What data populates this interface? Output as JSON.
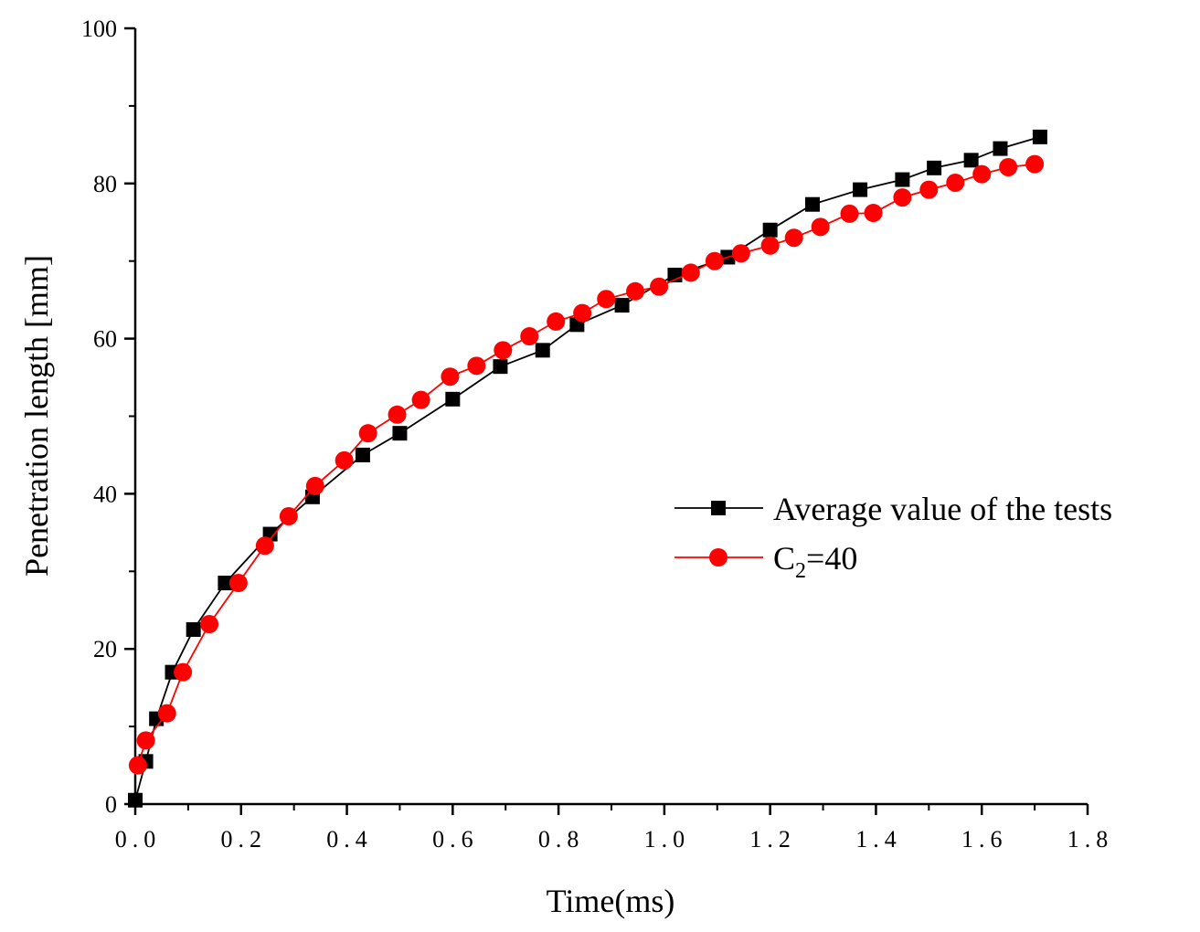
{
  "chart_data": {
    "type": "line",
    "title": "",
    "xlabel": "Time(ms)",
    "ylabel": "Penetration length [mm]",
    "xlim": [
      0,
      1.8
    ],
    "ylim": [
      0,
      100
    ],
    "xticks": [
      0.0,
      0.2,
      0.4,
      0.6,
      0.8,
      1.0,
      1.2,
      1.4,
      1.6,
      1.8
    ],
    "xtick_labels": [
      "0.0",
      "0.2",
      "0.4",
      "0.6",
      "0.8",
      "1.0",
      "1.2",
      "1.4",
      "1.6",
      "1.8"
    ],
    "yticks": [
      0,
      20,
      40,
      60,
      80,
      100
    ],
    "ytick_labels": [
      "0",
      "20",
      "40",
      "60",
      "80",
      "100"
    ],
    "legend_position": "center-right",
    "series": [
      {
        "name": "Average value of the tests",
        "color": "#000000",
        "marker": "square",
        "x": [
          0.0,
          0.02,
          0.04,
          0.07,
          0.11,
          0.17,
          0.255,
          0.335,
          0.43,
          0.5,
          0.6,
          0.69,
          0.77,
          0.835,
          0.92,
          1.02,
          1.12,
          1.2,
          1.28,
          1.37,
          1.45,
          1.51,
          1.58,
          1.635,
          1.71
        ],
        "y": [
          0.5,
          5.5,
          11,
          17,
          22.5,
          28.5,
          34.8,
          39.6,
          45,
          47.8,
          52.2,
          56.4,
          58.5,
          61.8,
          64.3,
          68.2,
          70.5,
          74,
          77.3,
          79.2,
          80.5,
          82,
          83,
          84.5,
          86
        ]
      },
      {
        "name": "C2=40",
        "color": "#ff0000",
        "marker": "circle",
        "x": [
          0.005,
          0.02,
          0.06,
          0.09,
          0.14,
          0.195,
          0.245,
          0.29,
          0.34,
          0.395,
          0.44,
          0.495,
          0.54,
          0.595,
          0.645,
          0.695,
          0.745,
          0.795,
          0.845,
          0.89,
          0.945,
          0.99,
          1.05,
          1.095,
          1.145,
          1.2,
          1.245,
          1.295,
          1.35,
          1.395,
          1.45,
          1.5,
          1.55,
          1.6,
          1.65,
          1.7
        ],
        "y": [
          5,
          8.2,
          11.7,
          17,
          23.2,
          28.5,
          33.3,
          37.1,
          41,
          44.3,
          47.8,
          50.2,
          52.1,
          55.1,
          56.5,
          58.5,
          60.3,
          62.2,
          63.3,
          65.1,
          66.1,
          66.7,
          68.5,
          70,
          71,
          72,
          73,
          74.4,
          76.1,
          76.2,
          78.2,
          79.2,
          80.1,
          81.2,
          82.1,
          82.5
        ]
      }
    ],
    "legend": {
      "entries": [
        {
          "label": "Average value of the tests",
          "series": 0
        },
        {
          "label_main": "C",
          "label_sub": "2",
          "label_rest": "=40",
          "series": 1
        }
      ]
    }
  }
}
